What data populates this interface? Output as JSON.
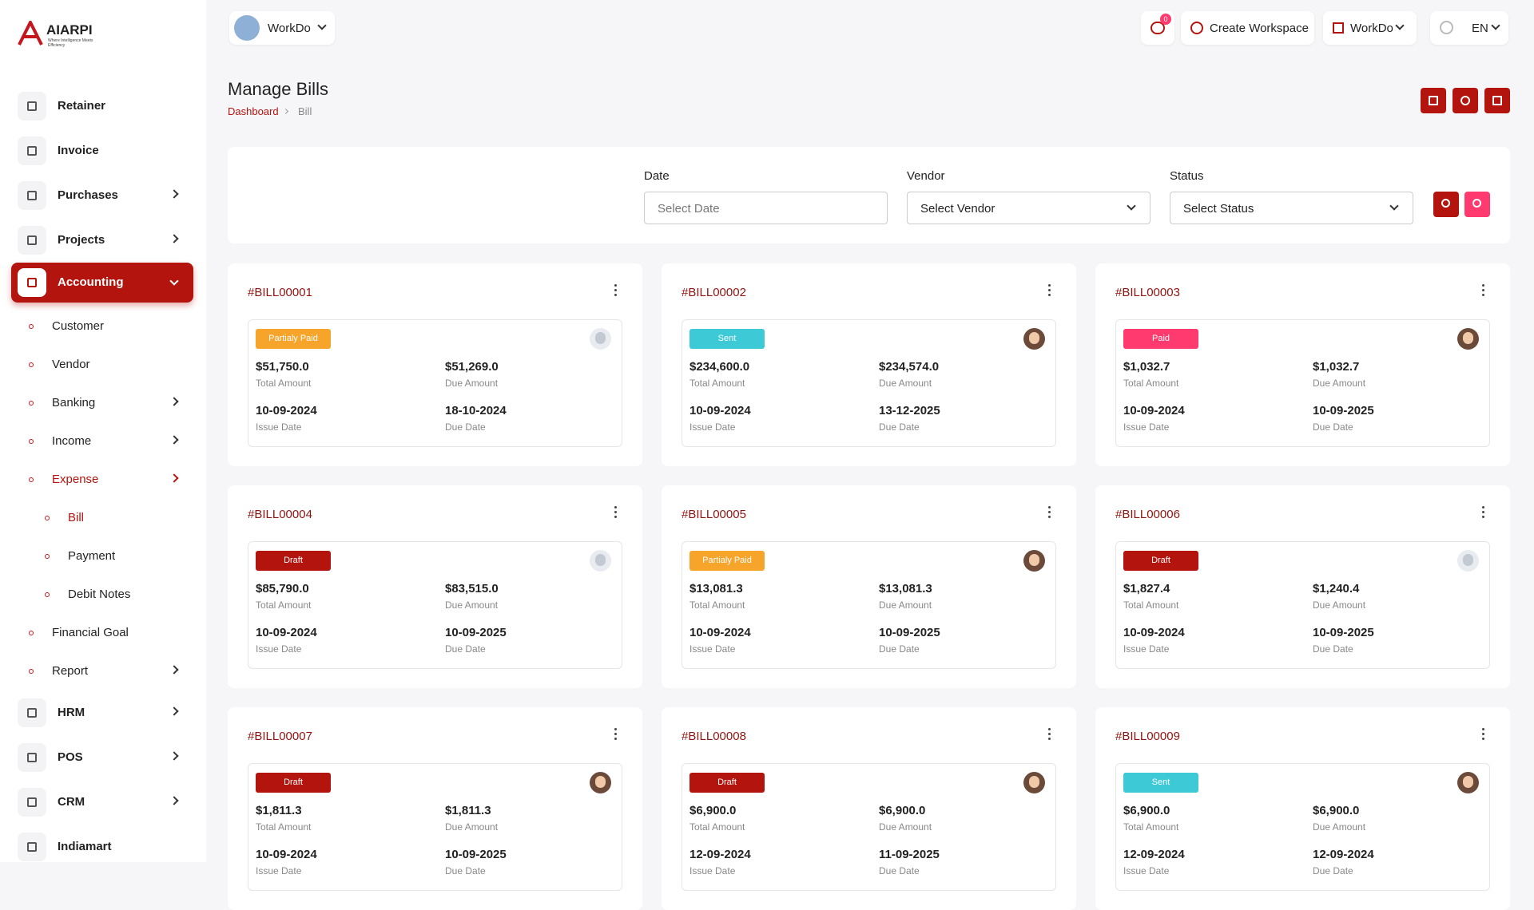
{
  "brand": {
    "name": "AIARPI",
    "tagline": "Where Intelligence Meets Efficiency"
  },
  "sidebar": {
    "items": [
      {
        "label": "Retainer"
      },
      {
        "label": "Invoice"
      },
      {
        "label": "Purchases",
        "expandable": true
      },
      {
        "label": "Projects",
        "expandable": true
      },
      {
        "label": "Accounting",
        "expandable": true,
        "active": true,
        "open": true,
        "children": [
          {
            "label": "Customer"
          },
          {
            "label": "Vendor"
          },
          {
            "label": "Banking",
            "expandable": true
          },
          {
            "label": "Income",
            "expandable": true
          },
          {
            "label": "Expense",
            "expandable": true,
            "current": true,
            "open": true,
            "children": [
              {
                "label": "Bill",
                "current": true
              },
              {
                "label": "Payment"
              },
              {
                "label": "Debit Notes"
              }
            ]
          },
          {
            "label": "Financial Goal"
          },
          {
            "label": "Report",
            "expandable": true
          }
        ]
      },
      {
        "label": "HRM",
        "expandable": true
      },
      {
        "label": "POS",
        "expandable": true
      },
      {
        "label": "CRM",
        "expandable": true
      },
      {
        "label": "Indiamart"
      }
    ]
  },
  "topbar": {
    "workspace": "WorkDo",
    "notifications": "0",
    "create_workspace": "Create Workspace",
    "company": "WorkDo",
    "language": "EN"
  },
  "page": {
    "title": "Manage Bills",
    "breadcrumb": [
      "Dashboard",
      "Bill"
    ]
  },
  "filters": [
    {
      "label": "Date",
      "placeholder": "Select Date",
      "kind": "input"
    },
    {
      "label": "Vendor",
      "placeholder": "Select Vendor",
      "kind": "select"
    },
    {
      "label": "Status",
      "placeholder": "Select Status",
      "kind": "select"
    }
  ],
  "card_labels": {
    "total": "Total Amount",
    "due": "Due Amount",
    "issue_date": "Issue Date",
    "due_date": "Due Date"
  },
  "bills": [
    {
      "id": "#BILL00001",
      "status": "Partialy Paid",
      "status_color": "#f7a42b",
      "avatar": "placeholder",
      "total": "$51,750.0",
      "due": "$51,269.0",
      "issue_date": "10-09-2024",
      "due_date": "18-10-2024"
    },
    {
      "id": "#BILL00002",
      "status": "Sent",
      "status_color": "#3ec9d6",
      "avatar": "photo",
      "total": "$234,600.0",
      "due": "$234,574.0",
      "issue_date": "10-09-2024",
      "due_date": "13-12-2025"
    },
    {
      "id": "#BILL00003",
      "status": "Paid",
      "status_color": "#ff3a6e",
      "avatar": "photo",
      "total": "$1,032.7",
      "due": "$1,032.7",
      "issue_date": "10-09-2024",
      "due_date": "10-09-2025"
    },
    {
      "id": "#BILL00004",
      "status": "Draft",
      "status_color": "#b3140e",
      "avatar": "placeholder",
      "total": "$85,790.0",
      "due": "$83,515.0",
      "issue_date": "10-09-2024",
      "due_date": "10-09-2025"
    },
    {
      "id": "#BILL00005",
      "status": "Partialy Paid",
      "status_color": "#f7a42b",
      "avatar": "photo",
      "total": "$13,081.3",
      "due": "$13,081.3",
      "issue_date": "10-09-2024",
      "due_date": "10-09-2025"
    },
    {
      "id": "#BILL00006",
      "status": "Draft",
      "status_color": "#b3140e",
      "avatar": "placeholder",
      "total": "$1,827.4",
      "due": "$1,240.4",
      "issue_date": "10-09-2024",
      "due_date": "10-09-2025"
    },
    {
      "id": "#BILL00007",
      "status": "Draft",
      "status_color": "#b3140e",
      "avatar": "photo",
      "total": "$1,811.3",
      "due": "$1,811.3",
      "issue_date": "10-09-2024",
      "due_date": "10-09-2025"
    },
    {
      "id": "#BILL00008",
      "status": "Draft",
      "status_color": "#b3140e",
      "avatar": "photo",
      "total": "$6,900.0",
      "due": "$6,900.0",
      "issue_date": "12-09-2024",
      "due_date": "11-09-2025"
    },
    {
      "id": "#BILL00009",
      "status": "Sent",
      "status_color": "#3ec9d6",
      "avatar": "photo",
      "total": "$6,900.0",
      "due": "$6,900.0",
      "issue_date": "12-09-2024",
      "due_date": "12-09-2024"
    }
  ]
}
